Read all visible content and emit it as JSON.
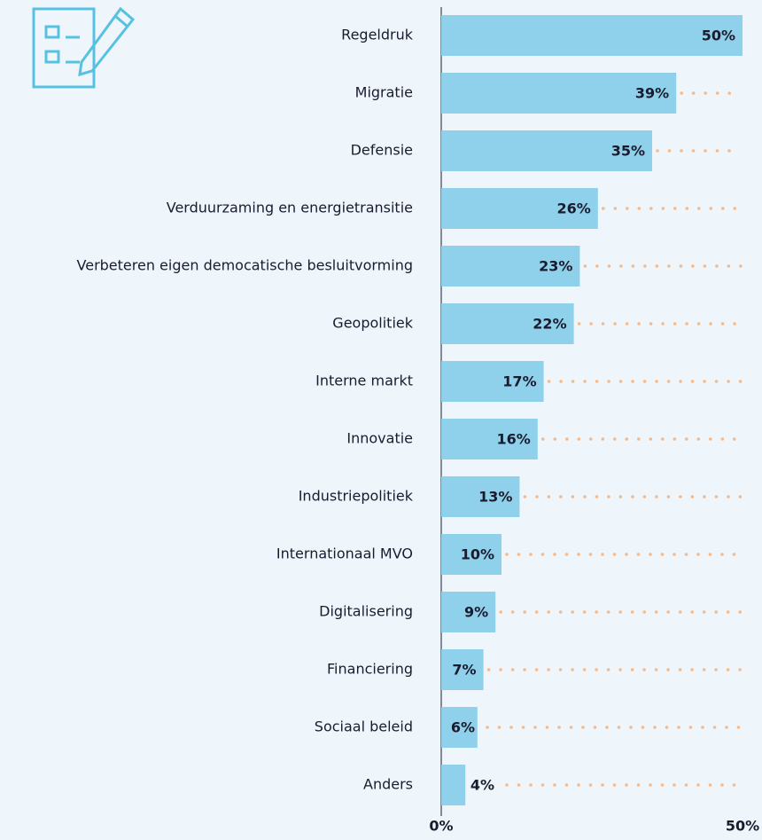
{
  "chart_data": {
    "type": "bar",
    "orientation": "horizontal",
    "categories": [
      "Regeldruk",
      "Migratie",
      "Defensie",
      "Verduurzaming en energietransitie",
      "Verbeteren eigen democatische besluitvorming",
      "Geopolitiek",
      "Interne markt",
      "Innovatie",
      "Industriepolitiek",
      "Internationaal MVO",
      "Digitalisering",
      "Financiering",
      "Sociaal beleid",
      "Anders"
    ],
    "values": [
      50,
      39,
      35,
      26,
      23,
      22,
      17,
      16,
      13,
      10,
      9,
      7,
      6,
      4
    ],
    "value_labels": [
      "50%",
      "39%",
      "35%",
      "26%",
      "23%",
      "22%",
      "17%",
      "16%",
      "13%",
      "10%",
      "9%",
      "7%",
      "6%",
      "4%"
    ],
    "color": "#8fd0ea",
    "xlim": [
      0,
      50
    ],
    "xticks": [
      {
        "value": 0,
        "label": "0%"
      },
      {
        "value": 50,
        "label": "50%"
      }
    ]
  }
}
